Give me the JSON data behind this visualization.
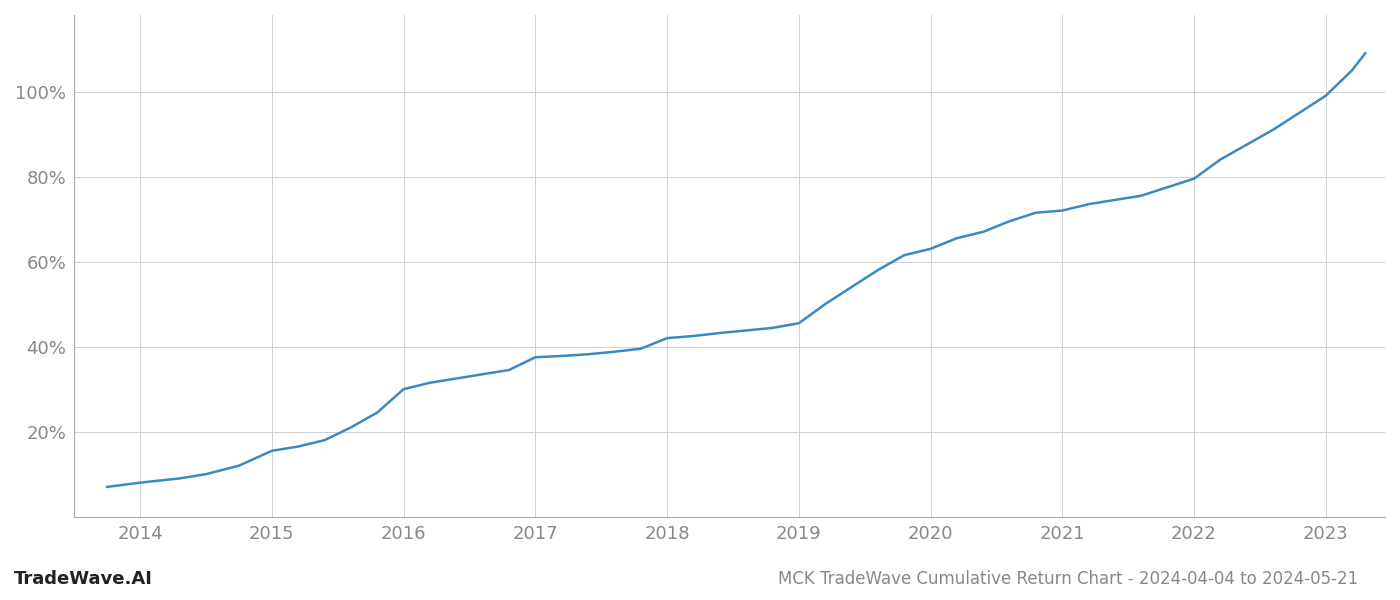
{
  "title": "MCK TradeWave Cumulative Return Chart - 2024-04-04 to 2024-05-21",
  "watermark": "TradeWave.AI",
  "line_color": "#3a8abf",
  "background_color": "#ffffff",
  "grid_color": "#d0d0d0",
  "x_years": [
    2013.75,
    2014.0,
    2014.15,
    2014.3,
    2014.5,
    2014.75,
    2015.0,
    2015.2,
    2015.4,
    2015.6,
    2015.8,
    2016.0,
    2016.2,
    2016.4,
    2016.6,
    2016.8,
    2017.0,
    2017.2,
    2017.4,
    2017.6,
    2017.8,
    2018.0,
    2018.2,
    2018.4,
    2018.6,
    2018.8,
    2019.0,
    2019.2,
    2019.4,
    2019.6,
    2019.8,
    2020.0,
    2020.2,
    2020.4,
    2020.6,
    2020.8,
    2021.0,
    2021.2,
    2021.4,
    2021.6,
    2021.8,
    2022.0,
    2022.2,
    2022.4,
    2022.6,
    2022.8,
    2023.0,
    2023.2,
    2023.3
  ],
  "y_values": [
    0.07,
    0.08,
    0.085,
    0.09,
    0.1,
    0.12,
    0.155,
    0.165,
    0.18,
    0.21,
    0.245,
    0.3,
    0.315,
    0.325,
    0.335,
    0.345,
    0.375,
    0.378,
    0.382,
    0.388,
    0.395,
    0.42,
    0.425,
    0.432,
    0.438,
    0.444,
    0.455,
    0.5,
    0.54,
    0.58,
    0.615,
    0.63,
    0.655,
    0.67,
    0.695,
    0.715,
    0.72,
    0.735,
    0.745,
    0.755,
    0.775,
    0.795,
    0.84,
    0.875,
    0.91,
    0.95,
    0.99,
    1.05,
    1.09
  ],
  "xlim": [
    2013.5,
    2023.45
  ],
  "ylim": [
    0.0,
    1.18
  ],
  "yticks": [
    0.2,
    0.4,
    0.6,
    0.8,
    1.0
  ],
  "ytick_labels": [
    "20%",
    "40%",
    "60%",
    "80%",
    "100%"
  ],
  "xticks": [
    2014,
    2015,
    2016,
    2017,
    2018,
    2019,
    2020,
    2021,
    2022,
    2023
  ],
  "xtick_labels": [
    "2014",
    "2015",
    "2016",
    "2017",
    "2018",
    "2019",
    "2020",
    "2021",
    "2022",
    "2023"
  ],
  "tick_color": "#888888",
  "label_fontsize": 13,
  "title_fontsize": 12,
  "watermark_fontsize": 13,
  "line_width": 1.8
}
